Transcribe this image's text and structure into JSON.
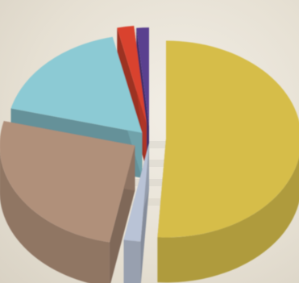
{
  "chart_data": {
    "type": "pie",
    "style": "3d-exploded",
    "title": "",
    "legend": "none",
    "data_labels": "none",
    "slices": [
      {
        "value": 51.0,
        "color": "#d6bd4a"
      },
      {
        "value": 2.0,
        "color": "#b9c3d6"
      },
      {
        "value": 26.0,
        "color": "#b0907a"
      },
      {
        "value": 17.5,
        "color": "#8ccad4"
      },
      {
        "value": 2.0,
        "color": "#d9432e"
      },
      {
        "value": 1.5,
        "color": "#5a3f8f"
      }
    ]
  },
  "colors": {
    "paper": "#ece7dc"
  }
}
